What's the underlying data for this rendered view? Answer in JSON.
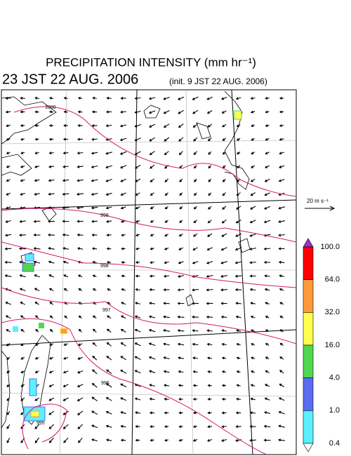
{
  "header": {
    "title": "PRECIPITATION INTENSITY (mm hr⁻¹)",
    "valid_time": "23 JST 22 AUG. 2006",
    "init_time": "(init. 9 JST 22 AUG. 2006)"
  },
  "vector_scale": {
    "label": "20 m s⁻¹"
  },
  "contour_labels": [
    "1000",
    "999",
    "998",
    "997",
    "996",
    "995"
  ],
  "colorbar": {
    "labels": [
      "100.0",
      "64.0",
      "32.0",
      "16.0",
      "4.0",
      "1.0",
      "0.4"
    ],
    "colors": [
      "#9a32cd",
      "#ff0000",
      "#ff9a3c",
      "#ffff50",
      "#50d750",
      "#5a6cf0",
      "#5af0ff",
      "#ffffff"
    ]
  }
}
